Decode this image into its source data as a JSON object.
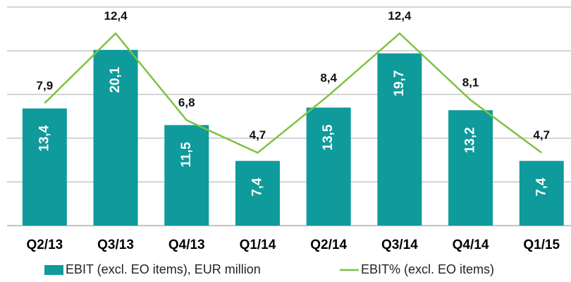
{
  "chart_data": {
    "type": "bar_line",
    "categories": [
      "Q2/13",
      "Q3/13",
      "Q4/13",
      "Q1/14",
      "Q2/14",
      "Q3/14",
      "Q4/14",
      "Q1/15"
    ],
    "series": [
      {
        "name": "EBIT (excl. EO items), EUR million",
        "color": "#0f9a9c",
        "type": "bar",
        "values": [
          13.4,
          20.1,
          11.5,
          7.4,
          13.5,
          19.7,
          13.2,
          7.4
        ],
        "value_labels": [
          "13,4",
          "20,1",
          "11,5",
          "7,4",
          "13,5",
          "19,7",
          "13,2",
          "7,4"
        ]
      },
      {
        "name": "EBIT% (excl. EO items)",
        "color": "#7dc242",
        "type": "line",
        "axis": "y2",
        "values": [
          7.9,
          12.4,
          6.8,
          4.7,
          8.4,
          12.4,
          8.1,
          4.7
        ],
        "value_labels": [
          "7,9",
          "12,4",
          "6,8",
          "4,7",
          "8,4",
          "12,4",
          "8,1",
          "4,7"
        ]
      }
    ],
    "ylim": [
      0,
      25
    ],
    "yticks": [
      0,
      5,
      10,
      15,
      20,
      25
    ],
    "y2lim": [
      0,
      14.1
    ],
    "grid": true,
    "legend": "bottom"
  }
}
